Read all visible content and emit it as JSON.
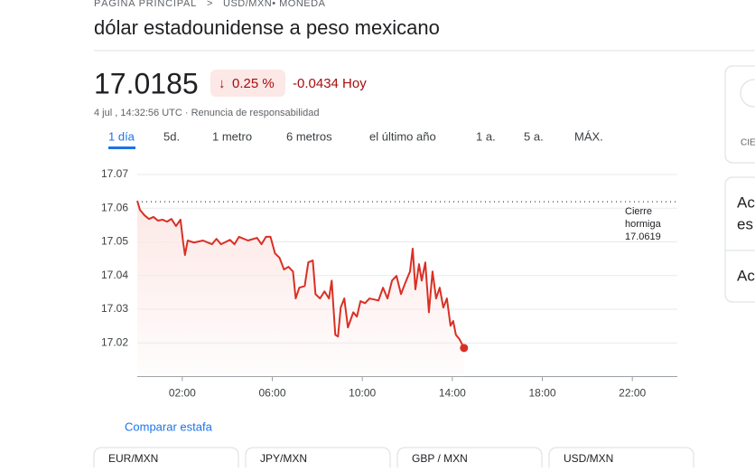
{
  "header": {
    "breadcrumb": "PÁGINA PRINCIPAL",
    "breadcrumb_current": "USD/MXN• MONEDA",
    "title": "dólar estadounidense a peso mexicano"
  },
  "quote": {
    "price": "17.0185",
    "change_percent": "0.25 %",
    "change": "-0.0434 Hoy",
    "timestamp": "4 jul , 14:32:56 UTC · Renuncia de responsabilidad"
  },
  "tabs": {
    "items": [
      "1 día",
      "5d.",
      "1 metro",
      "6 metros",
      "el último año",
      "1 a.",
      "5 a.",
      "MÁX."
    ],
    "selected": 0
  },
  "chart_data": {
    "type": "line",
    "color": "#d93025",
    "grid": true,
    "xlim": [
      0,
      24
    ],
    "xticks": [
      {
        "value": 2,
        "label": "02:00"
      },
      {
        "value": 6,
        "label": "06:00"
      },
      {
        "value": 10,
        "label": "10:00"
      },
      {
        "value": 14,
        "label": "14:00"
      },
      {
        "value": 18,
        "label": "18:00"
      },
      {
        "value": 22,
        "label": "22:00"
      }
    ],
    "ylim": [
      17.01,
      17.07
    ],
    "yticks": [
      17.02,
      17.03,
      17.04,
      17.05,
      17.06,
      17.07
    ],
    "prev_close_label": [
      "Cierre",
      "hormiga"
    ],
    "prev_close": 17.0619,
    "x": [
      0,
      0.12,
      0.32,
      0.52,
      0.72,
      0.92,
      1.12,
      1.32,
      1.52,
      1.72,
      1.92,
      2.04,
      2.12,
      2.24,
      2.52,
      2.92,
      3.32,
      3.52,
      3.72,
      4.12,
      4.32,
      4.52,
      4.92,
      5.32,
      5.52,
      5.72,
      5.92,
      6.12,
      6.32,
      6.52,
      6.72,
      6.92,
      7.04,
      7.2,
      7.44,
      7.6,
      7.8,
      7.92,
      8.12,
      8.32,
      8.52,
      8.64,
      8.8,
      8.92,
      9.04,
      9.2,
      9.36,
      9.6,
      9.76,
      9.92,
      10.12,
      10.32,
      10.72,
      10.92,
      11.12,
      11.32,
      11.52,
      11.72,
      11.92,
      12.12,
      12.24,
      12.36,
      12.52,
      12.64,
      12.8,
      12.96,
      13.12,
      13.28,
      13.44,
      13.6,
      13.76,
      13.92,
      14.04,
      14.16,
      14.32,
      14.52
    ],
    "series": [
      {
        "values": [
          17.0622,
          17.0595,
          17.0579,
          17.0568,
          17.0574,
          17.0563,
          17.0566,
          17.056,
          17.0568,
          17.0547,
          17.0566,
          17.0498,
          17.0461,
          17.0504,
          17.0498,
          17.0504,
          17.0493,
          17.0509,
          17.0493,
          17.0506,
          17.0493,
          17.0515,
          17.0504,
          17.0512,
          17.0493,
          17.0515,
          17.0515,
          17.0466,
          17.0453,
          17.0418,
          17.0426,
          17.0412,
          17.0332,
          17.0364,
          17.0369,
          17.0439,
          17.0445,
          17.0345,
          17.0332,
          17.0353,
          17.0332,
          17.0385,
          17.0224,
          17.0219,
          17.0305,
          17.0332,
          17.0246,
          17.0291,
          17.0278,
          17.0324,
          17.0318,
          17.0332,
          17.0326,
          17.0364,
          17.0332,
          17.0385,
          17.0399,
          17.0345,
          17.038,
          17.0412,
          17.048,
          17.0359,
          17.0434,
          17.0385,
          17.0439,
          17.0291,
          17.0412,
          17.0332,
          17.0364,
          17.0305,
          17.0332,
          17.0251,
          17.0265,
          17.0224,
          17.0211,
          17.0185
        ]
      }
    ]
  },
  "compare": {
    "label": "Comparar estafa",
    "cards": [
      "EUR/MXN",
      "JPY/MXN",
      "GBP / MXN",
      "USD/MXN"
    ]
  },
  "side": {
    "panel1": "CIE",
    "panel2_lines": [
      "Ac",
      "es"
    ],
    "panel3": "Ac"
  }
}
